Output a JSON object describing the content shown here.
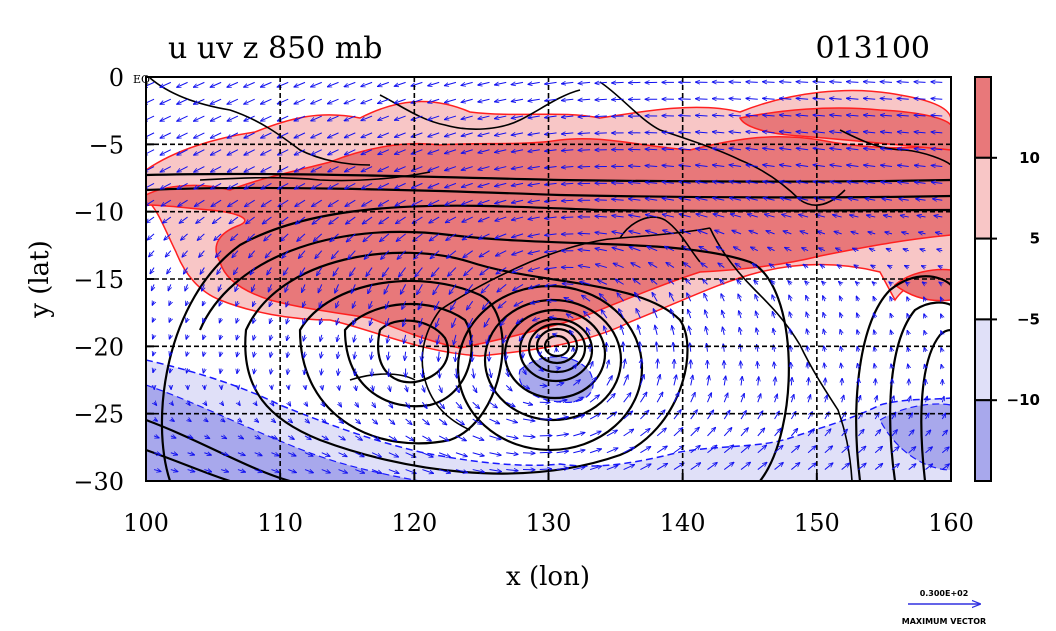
{
  "chart_data": {
    "type": "heatmap",
    "title": "u uv z 850 mb",
    "time_label": "013100",
    "xlabel": "x (lon)",
    "ylabel": "y (lat)",
    "xlim": [
      100,
      160
    ],
    "ylim": [
      -30,
      0
    ],
    "xticks": [
      {
        "value": 100,
        "label": "100"
      },
      {
        "value": 110,
        "label": "110"
      },
      {
        "value": 120,
        "label": "120"
      },
      {
        "value": 130,
        "label": "130"
      },
      {
        "value": 140,
        "label": "140"
      },
      {
        "value": 150,
        "label": "150"
      },
      {
        "value": 160,
        "label": "160"
      }
    ],
    "yticks": [
      {
        "value": 0,
        "label": "0"
      },
      {
        "value": -5,
        "label": "−5"
      },
      {
        "value": -10,
        "label": "−10"
      },
      {
        "value": -15,
        "label": "−15"
      },
      {
        "value": -20,
        "label": "−20"
      },
      {
        "value": -25,
        "label": "−25"
      },
      {
        "value": -30,
        "label": "−30"
      }
    ],
    "y_zero_suffix": "EQ",
    "grid": true,
    "colorbar": {
      "position": "right",
      "levels": [
        {
          "label": "10",
          "value": 10
        },
        {
          "label": "5",
          "value": 5
        },
        {
          "label": "−5",
          "value": -5
        },
        {
          "label": "−10",
          "value": -10
        }
      ],
      "colors": [
        "#e8787a",
        "#f8c6c6",
        "#ffffff",
        "#e0e0f8",
        "#a8a8ec"
      ]
    },
    "cyclone_center": {
      "lon": 130.3,
      "lat": -20
    },
    "reference_vector": {
      "value": "0.300E+02",
      "label": "MAXIMUM VECTOR"
    },
    "colors": {
      "positive_contour": "#ff0000",
      "negative_contour": "#0000ff",
      "vectors": "#1010f0",
      "height_contours": "#000000"
    }
  }
}
